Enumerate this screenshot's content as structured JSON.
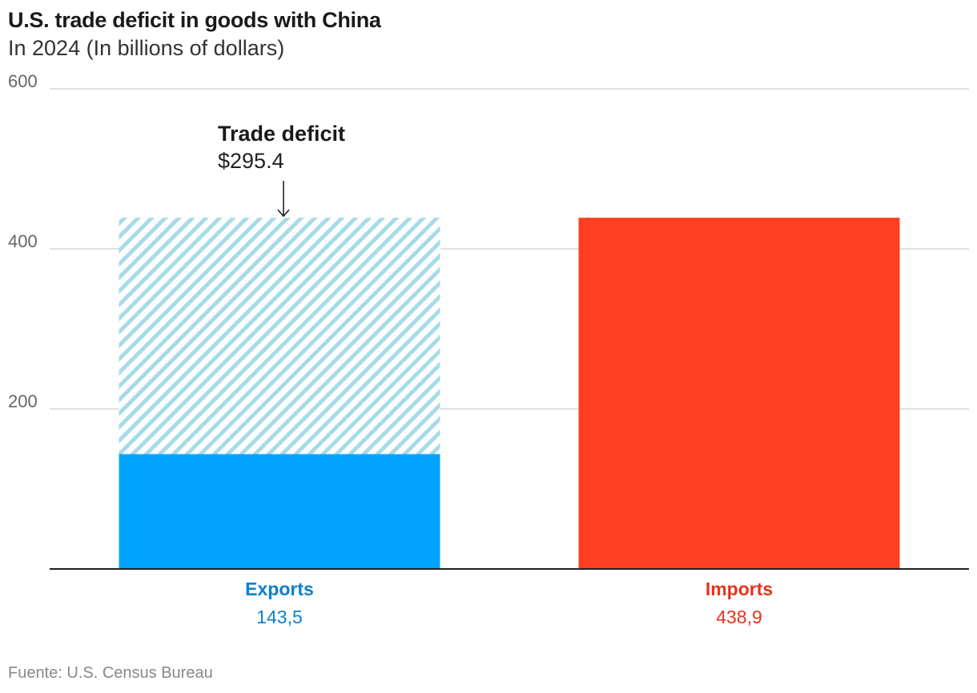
{
  "chart_data": {
    "type": "bar",
    "title": "U.S. trade deficit in goods with China",
    "subtitle": "In 2024 (In billions of dollars)",
    "categories": [
      "Exports",
      "Imports"
    ],
    "values": [
      143.5,
      438.9
    ],
    "value_labels": [
      "143,5",
      "438,9"
    ],
    "colors": [
      "#00a3ff",
      "#ff3f22"
    ],
    "label_colors": [
      "#0a7fd1",
      "#e8321c"
    ],
    "ylim": [
      0,
      600
    ],
    "yticks": [
      200,
      400,
      600
    ],
    "grid": true,
    "annotation": {
      "title": "Trade deficit",
      "value_label": "$295.4",
      "value": 295.4,
      "stack_on": "Exports",
      "pattern_color": "#a8dbe8"
    },
    "source": "Fuente: U.S. Census Bureau"
  }
}
